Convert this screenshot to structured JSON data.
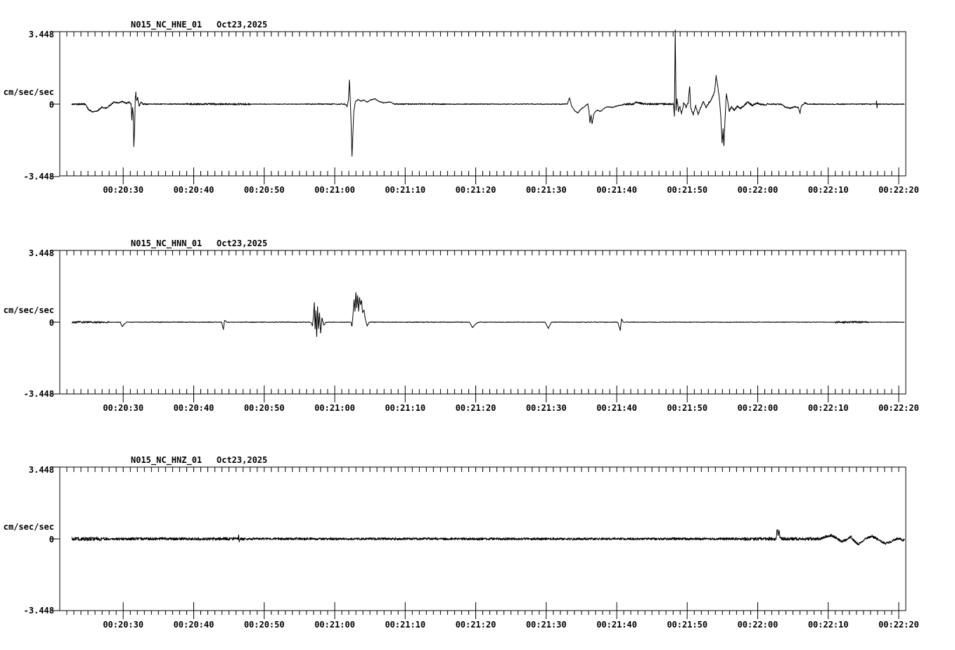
{
  "page": {
    "background": "#ffffff"
  },
  "figure": {
    "trace_color": "#000000",
    "frame_color": "#000000",
    "text_color": "#000000"
  },
  "chart_data": {
    "type": "line",
    "subtype": "seismogram-3-component-strip-plot",
    "grid": "off",
    "legend": "none",
    "time_axis": {
      "window_seconds_after_00_20_00": [
        21,
        141
      ],
      "minor_tick_step_seconds": 1,
      "major_ticks": [
        {
          "t": 30,
          "label": "00:20:30"
        },
        {
          "t": 40,
          "label": "00:20:40"
        },
        {
          "t": 50,
          "label": "00:20:50"
        },
        {
          "t": 60,
          "label": "00:21:00"
        },
        {
          "t": 70,
          "label": "00:21:10"
        },
        {
          "t": 80,
          "label": "00:21:20"
        },
        {
          "t": 90,
          "label": "00:21:30"
        },
        {
          "t": 100,
          "label": "00:21:40"
        },
        {
          "t": 110,
          "label": "00:21:50"
        },
        {
          "t": 120,
          "label": "00:22:00"
        },
        {
          "t": 130,
          "label": "00:22:10"
        },
        {
          "t": 140,
          "label": "00:22:20"
        }
      ]
    },
    "y_axis": {
      "unit_label": "cm/sec/sec",
      "lim": [
        -3.448,
        3.448
      ],
      "ticks": [
        {
          "value": 3.448,
          "label": "3.448"
        },
        {
          "value": 0,
          "label": "0"
        },
        {
          "value": -3.448,
          "label": "-3.448"
        }
      ]
    },
    "panels": [
      {
        "station": "N015_NC_HNE_01",
        "date": "Oct23,2025",
        "trace_span_seconds": [
          22.7,
          140.8
        ],
        "minor_bottom_tick_side": "in",
        "noise": {
          "base": 0.022,
          "regions": [
            [
              21,
              25.2,
              0.05
            ],
            [
              25.2,
              33.5,
              0.04
            ],
            [
              33.5,
              39,
              0.028
            ],
            [
              39,
              48,
              0.05
            ],
            [
              56,
              61.5,
              0.03
            ],
            [
              68.5,
              76,
              0.035
            ],
            [
              76,
              93,
              0.025
            ],
            [
              101,
              108,
              0.055
            ],
            [
              108,
              121.5,
              0.05
            ],
            [
              121.5,
              127,
              0.035
            ],
            [
              127,
              141,
              0.028
            ]
          ]
        },
        "events": [
          [
            [
              24.6,
              0
            ],
            [
              25.1,
              -0.26
            ],
            [
              25.7,
              -0.38
            ],
            [
              26.4,
              -0.3
            ],
            [
              27.0,
              -0.14
            ],
            [
              27.5,
              -0.2
            ],
            [
              28.1,
              -0.06
            ],
            [
              28.7,
              0.1
            ],
            [
              29.3,
              0.06
            ],
            [
              29.9,
              0.12
            ],
            [
              30.5,
              0.04
            ],
            [
              30.9,
              0.1
            ],
            [
              31.05,
              0
            ]
          ],
          [
            [
              31.1,
              0
            ],
            [
              31.22,
              -0.75
            ],
            [
              31.32,
              -0.15
            ],
            [
              31.42,
              -0.5
            ],
            [
              31.5,
              -2.05
            ],
            [
              31.62,
              -1.1
            ],
            [
              31.7,
              0.2
            ],
            [
              31.78,
              0.55
            ],
            [
              31.9,
              0.15
            ],
            [
              32.05,
              0.3
            ],
            [
              32.25,
              -0.12
            ],
            [
              32.5,
              0.08
            ],
            [
              32.9,
              0
            ]
          ],
          [
            [
              61.5,
              0
            ],
            [
              61.75,
              -0.12
            ],
            [
              61.95,
              0.2
            ],
            [
              62.08,
              1.15
            ],
            [
              62.2,
              0.3
            ],
            [
              62.32,
              -0.8
            ],
            [
              62.45,
              -2.5
            ],
            [
              62.6,
              -1.3
            ],
            [
              62.72,
              -0.3
            ],
            [
              62.95,
              0.12
            ],
            [
              63.3,
              0.22
            ],
            [
              63.7,
              0.14
            ],
            [
              64.1,
              0.2
            ],
            [
              64.6,
              0.1
            ],
            [
              65.1,
              0.2
            ],
            [
              65.7,
              0.25
            ],
            [
              66.2,
              0.14
            ],
            [
              66.9,
              0.06
            ],
            [
              67.8,
              0.1
            ],
            [
              68.5,
              0
            ]
          ],
          [
            [
              93.0,
              0
            ],
            [
              93.3,
              0.3
            ],
            [
              93.6,
              -0.08
            ],
            [
              94.0,
              -0.3
            ],
            [
              94.5,
              -0.42
            ],
            [
              94.9,
              -0.25
            ],
            [
              95.4,
              -0.12
            ],
            [
              95.85,
              0
            ]
          ],
          [
            [
              95.9,
              0
            ],
            [
              96.05,
              -0.3
            ],
            [
              96.2,
              -0.9
            ],
            [
              96.35,
              -0.5
            ],
            [
              96.5,
              -0.95
            ],
            [
              96.75,
              -0.45
            ],
            [
              97.2,
              -0.28
            ],
            [
              97.7,
              -0.35
            ],
            [
              98.2,
              -0.2
            ],
            [
              98.7,
              -0.12
            ],
            [
              99.4,
              -0.16
            ],
            [
              100.1,
              -0.08
            ],
            [
              100.9,
              -0.03
            ],
            [
              101.5,
              0
            ]
          ],
          [
            [
              102.3,
              0
            ],
            [
              102.8,
              0.1
            ],
            [
              103.3,
              0.05
            ],
            [
              103.8,
              0
            ]
          ],
          [
            [
              108.05,
              0
            ],
            [
              108.18,
              -0.55
            ],
            [
              108.3,
              3.6
            ],
            [
              108.42,
              -0.3
            ],
            [
              108.55,
              0.3
            ],
            [
              108.75,
              -0.35
            ],
            [
              108.95,
              -0.1
            ],
            [
              109.2,
              -0.45
            ],
            [
              109.5,
              0.05
            ],
            [
              109.85,
              -0.15
            ],
            [
              110.15,
              0.1
            ],
            [
              110.35,
              0.85
            ],
            [
              110.5,
              -0.2
            ],
            [
              110.85,
              -0.5
            ],
            [
              111.2,
              -0.08
            ],
            [
              111.55,
              -0.5
            ],
            [
              111.9,
              -0.15
            ],
            [
              112.3,
              0.1
            ],
            [
              112.7,
              -0.2
            ],
            [
              113.0,
              0.05
            ],
            [
              113.3,
              0.12
            ],
            [
              113.6,
              0.35
            ],
            [
              113.9,
              0.6
            ],
            [
              114.1,
              1.35
            ],
            [
              114.35,
              0.8
            ],
            [
              114.55,
              0.3
            ],
            [
              114.75,
              -0.5
            ],
            [
              114.95,
              -1.87
            ],
            [
              115.08,
              -1.2
            ],
            [
              115.2,
              -2.0
            ],
            [
              115.35,
              -0.8
            ],
            [
              115.55,
              0.5
            ],
            [
              115.75,
              0.1
            ],
            [
              115.95,
              -0.35
            ],
            [
              116.3,
              -0.12
            ],
            [
              116.7,
              -0.3
            ],
            [
              117.1,
              -0.1
            ],
            [
              117.6,
              -0.2
            ],
            [
              118.1,
              -0.05
            ],
            [
              118.6,
              0.1
            ],
            [
              119.2,
              -0.06
            ],
            [
              119.9,
              0.05
            ],
            [
              120.8,
              -0.04
            ],
            [
              121.5,
              0
            ]
          ],
          [
            [
              123.3,
              0
            ],
            [
              123.9,
              -0.14
            ],
            [
              124.6,
              -0.2
            ],
            [
              125.3,
              -0.12
            ],
            [
              125.8,
              -0.18
            ],
            [
              126.0,
              -0.45
            ],
            [
              126.2,
              -0.08
            ],
            [
              126.7,
              0.06
            ],
            [
              127.1,
              0
            ]
          ],
          [
            [
              136.8,
              0
            ],
            [
              136.86,
              0.18
            ],
            [
              136.92,
              -0.18
            ],
            [
              136.98,
              0
            ]
          ]
        ]
      },
      {
        "station": "N015_NC_HNN_01",
        "date": "Oct23,2025",
        "trace_span_seconds": [
          22.7,
          140.8
        ],
        "minor_bottom_tick_side": "in",
        "noise": {
          "base": 0.018,
          "regions": [
            [
              21,
              28,
              0.05
            ],
            [
              33,
              43,
              0.022
            ],
            [
              48,
              56.5,
              0.022
            ],
            [
              65,
              79,
              0.02
            ],
            [
              131,
              135.7,
              0.05
            ]
          ]
        },
        "events": [
          [
            [
              29.6,
              0
            ],
            [
              29.85,
              -0.22
            ],
            [
              30.15,
              -0.08
            ],
            [
              30.5,
              0
            ]
          ],
          [
            [
              43.95,
              0
            ],
            [
              44.2,
              -0.35
            ],
            [
              44.38,
              0.1
            ],
            [
              44.7,
              0
            ]
          ],
          [
            [
              56.6,
              0
            ],
            [
              56.85,
              -0.18
            ],
            [
              57.0,
              0.35
            ],
            [
              57.1,
              0.95
            ],
            [
              57.22,
              -0.35
            ],
            [
              57.32,
              0.55
            ],
            [
              57.45,
              -0.7
            ],
            [
              57.57,
              0.75
            ],
            [
              57.7,
              -0.32
            ],
            [
              57.85,
              0.45
            ],
            [
              58.0,
              -0.55
            ],
            [
              58.2,
              0.22
            ],
            [
              58.45,
              -0.15
            ],
            [
              58.75,
              0
            ]
          ],
          [
            [
              62.3,
              0
            ],
            [
              62.45,
              -0.2
            ],
            [
              62.6,
              0.35
            ],
            [
              62.75,
              1.1
            ],
            [
              62.88,
              0.5
            ],
            [
              63.0,
              1.45
            ],
            [
              63.12,
              0.7
            ],
            [
              63.25,
              1.3
            ],
            [
              63.38,
              0.5
            ],
            [
              63.52,
              1.2
            ],
            [
              63.65,
              0.85
            ],
            [
              63.8,
              1.05
            ],
            [
              63.95,
              0.45
            ],
            [
              64.15,
              0.6
            ],
            [
              64.35,
              0.12
            ],
            [
              64.6,
              -0.18
            ],
            [
              64.9,
              0
            ]
          ],
          [
            [
              79.1,
              0
            ],
            [
              79.55,
              -0.26
            ],
            [
              80.0,
              -0.08
            ],
            [
              80.45,
              0
            ]
          ],
          [
            [
              89.85,
              0
            ],
            [
              90.3,
              -0.3
            ],
            [
              90.75,
              0
            ]
          ],
          [
            [
              100.15,
              0
            ],
            [
              100.5,
              -0.4
            ],
            [
              100.68,
              0.15
            ],
            [
              100.95,
              0
            ]
          ]
        ]
      },
      {
        "station": "N015_NC_HNZ_01",
        "date": "Oct23,2025",
        "trace_span_seconds": [
          22.7,
          140.8
        ],
        "minor_bottom_tick_side": "out",
        "noise": {
          "base": 0.065,
          "regions": [
            [
              21,
              27,
              0.1
            ],
            [
              27,
              42,
              0.075
            ],
            [
              42,
              47,
              0.085
            ],
            [
              60,
              66,
              0.06
            ],
            [
              95,
              105,
              0.06
            ],
            [
              118,
              129,
              0.085
            ],
            [
              129,
              141,
              0.07
            ]
          ]
        },
        "events": [
          [
            [
              46.3,
              0
            ],
            [
              46.38,
              0.16
            ],
            [
              46.46,
              -0.16
            ],
            [
              46.54,
              0
            ]
          ],
          [
            [
              122.6,
              0
            ],
            [
              122.78,
              0.5
            ],
            [
              122.9,
              0.12
            ],
            [
              123.0,
              0.45
            ],
            [
              123.15,
              0.08
            ],
            [
              123.4,
              0
            ]
          ],
          [
            [
              128.8,
              0
            ],
            [
              129.6,
              0.1
            ],
            [
              130.4,
              0.16
            ],
            [
              131.1,
              0.06
            ],
            [
              131.8,
              -0.12
            ],
            [
              132.5,
              -0.06
            ],
            [
              133.2,
              0.1
            ],
            [
              133.8,
              -0.14
            ],
            [
              134.3,
              -0.26
            ],
            [
              134.9,
              -0.12
            ],
            [
              135.5,
              0.06
            ],
            [
              136.2,
              0.12
            ],
            [
              136.8,
              0.03
            ],
            [
              137.4,
              -0.1
            ],
            [
              138.1,
              -0.22
            ],
            [
              138.7,
              -0.16
            ],
            [
              139.3,
              -0.05
            ],
            [
              139.9,
              0.02
            ],
            [
              140.5,
              -0.06
            ],
            [
              140.8,
              -0.04
            ]
          ]
        ]
      }
    ]
  }
}
